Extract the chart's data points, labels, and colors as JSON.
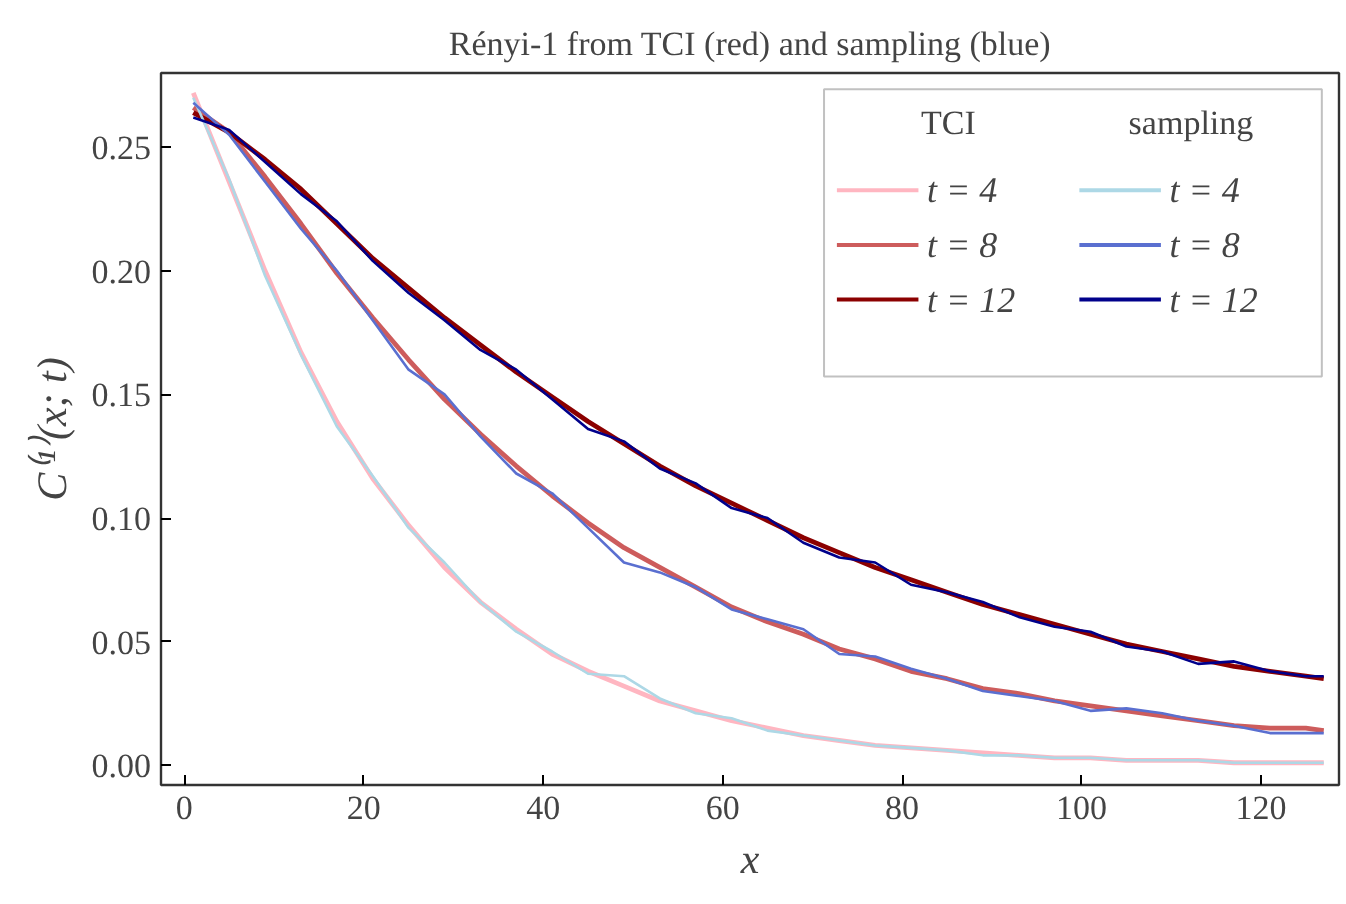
{
  "chart_data": {
    "type": "line",
    "title": "Rényi-1 from TCI (red) and sampling (blue)",
    "xlabel": "x",
    "ylabel": "C⁽¹⁾(x; t)",
    "x": [
      1,
      5,
      9,
      13,
      17,
      21,
      25,
      29,
      33,
      37,
      41,
      45,
      49,
      53,
      57,
      61,
      65,
      69,
      73,
      77,
      81,
      85,
      89,
      93,
      97,
      101,
      105,
      109,
      113,
      117,
      121,
      125,
      127
    ],
    "xlim": [
      -2.6,
      128.7
    ],
    "ylim": [
      -0.008,
      0.28
    ],
    "xticks": [
      0,
      20,
      40,
      60,
      80,
      100,
      120
    ],
    "yticks": [
      {
        "value": 0,
        "label": "0.00"
      },
      {
        "value": 0.05,
        "label": "0.05"
      },
      {
        "value": 0.1,
        "label": "0.10"
      },
      {
        "value": 0.15,
        "label": "0.15"
      },
      {
        "value": 0.2,
        "label": "0.20"
      },
      {
        "value": 0.25,
        "label": "0.25"
      }
    ],
    "grid": false,
    "legend": "top right",
    "annotations": [
      "TCI",
      "sampling"
    ],
    "series": [
      {
        "name": "t = 4",
        "color": "#ffb6c1",
        "values": [
          0.272,
          0.236,
          0.2,
          0.167,
          0.139,
          0.116,
          0.097,
          0.08,
          0.066,
          0.055,
          0.045,
          0.038,
          0.032,
          0.026,
          0.022,
          0.018,
          0.015,
          0.012,
          0.01,
          0.008,
          0.007,
          0.006,
          0.005,
          0.004,
          0.003,
          0.003,
          0.002,
          0.002,
          0.002,
          0.001,
          0.001,
          0.001,
          0.001
        ]
      },
      {
        "name": "t = 8",
        "color": "#cd5c5c",
        "values": [
          0.266,
          0.256,
          0.238,
          0.219,
          0.199,
          0.181,
          0.164,
          0.148,
          0.134,
          0.121,
          0.109,
          0.098,
          0.088,
          0.08,
          0.072,
          0.064,
          0.058,
          0.053,
          0.047,
          0.043,
          0.038,
          0.035,
          0.031,
          0.029,
          0.026,
          0.024,
          0.022,
          0.02,
          0.018,
          0.016,
          0.015,
          0.015,
          0.014
        ]
      },
      {
        "name": "t = 12",
        "color": "#8b0000",
        "values": [
          0.264,
          0.256,
          0.245,
          0.233,
          0.219,
          0.205,
          0.193,
          0.181,
          0.17,
          0.159,
          0.149,
          0.139,
          0.13,
          0.121,
          0.113,
          0.106,
          0.099,
          0.092,
          0.086,
          0.08,
          0.075,
          0.07,
          0.065,
          0.061,
          0.057,
          0.053,
          0.049,
          0.046,
          0.043,
          0.04,
          0.038,
          0.036,
          0.035
        ]
      },
      {
        "name": "t = 4",
        "color": "#add8e6",
        "values": [
          0.27,
          0.237,
          0.198,
          0.166,
          0.137,
          0.117,
          0.096,
          0.082,
          0.066,
          0.054,
          0.046,
          0.037,
          0.036,
          0.027,
          0.021,
          0.019,
          0.014,
          0.012,
          0.01,
          0.008,
          0.007,
          0.006,
          0.004,
          0.004,
          0.003,
          0.003,
          0.002,
          0.002,
          0.002,
          0.001,
          0.001,
          0.001,
          0.001
        ]
      },
      {
        "name": "t = 8",
        "color": "#5a6fd0",
        "values": [
          0.268,
          0.255,
          0.236,
          0.217,
          0.2,
          0.18,
          0.16,
          0.15,
          0.133,
          0.118,
          0.11,
          0.096,
          0.082,
          0.078,
          0.072,
          0.063,
          0.059,
          0.055,
          0.045,
          0.044,
          0.039,
          0.035,
          0.03,
          0.028,
          0.026,
          0.022,
          0.023,
          0.021,
          0.018,
          0.016,
          0.013,
          0.013,
          0.013
        ]
      },
      {
        "name": "t = 12",
        "color": "#00008b",
        "values": [
          0.262,
          0.257,
          0.244,
          0.231,
          0.22,
          0.204,
          0.191,
          0.18,
          0.168,
          0.16,
          0.148,
          0.136,
          0.131,
          0.12,
          0.114,
          0.104,
          0.1,
          0.09,
          0.084,
          0.082,
          0.073,
          0.07,
          0.066,
          0.06,
          0.056,
          0.054,
          0.048,
          0.046,
          0.041,
          0.042,
          0.038,
          0.036,
          0.036
        ]
      }
    ]
  }
}
